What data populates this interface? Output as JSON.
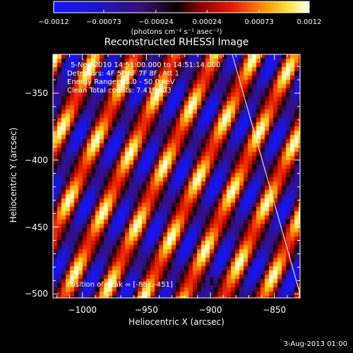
{
  "colorbar": {
    "tick_labels": [
      "−0.0012",
      "−0.00073",
      "−0.00024",
      "0.00024",
      "0.00073",
      "0.0012"
    ],
    "tick_values": [
      -0.0012,
      -0.00073,
      -0.00024,
      0.00024,
      0.00073,
      0.0012
    ],
    "units_label": "(photons cm⁻² s⁻¹ asec⁻²)",
    "range": [
      -0.0012,
      0.0012
    ]
  },
  "image_info": {
    "line1": "5-Nov-2010 14:51:00.000 to 14:51:14.000",
    "line2": "Detectors: 4F 5F 6F 7F 8F, Att 1",
    "line3": "Energy Range: 25.0 - 50.0 keV",
    "line4": "Clean    Total counts: 7.41E+03",
    "peak": "Position of Peak = [-881,-451]"
  },
  "footer": {
    "date": "3-Aug-2013 01:00"
  },
  "chart_data": {
    "type": "heatmap",
    "title": "Reconstructed RHESSI Image",
    "xlabel": "Heliocentric X (arcsec)",
    "ylabel": "Heliocentric Y (arcsec)",
    "xlim": [
      -1023,
      -830
    ],
    "ylim": [
      -503,
      -321
    ],
    "x_ticks": [
      -1000,
      -950,
      -900,
      -850
    ],
    "y_ticks": [
      -350,
      -400,
      -450,
      -500
    ],
    "x_tick_labels": [
      "−1000",
      "−950",
      "−900",
      "−850"
    ],
    "y_tick_labels": [
      "−350",
      "−400",
      "−450",
      "−500"
    ],
    "colorscale": "blue-black-red-yellow-white",
    "value_range": [
      -0.0012,
      0.0012
    ],
    "peak_position": [
      -881,
      -451
    ],
    "limb_line": [
      [
        -883,
        -321
      ],
      [
        -830,
        -500
      ]
    ]
  }
}
